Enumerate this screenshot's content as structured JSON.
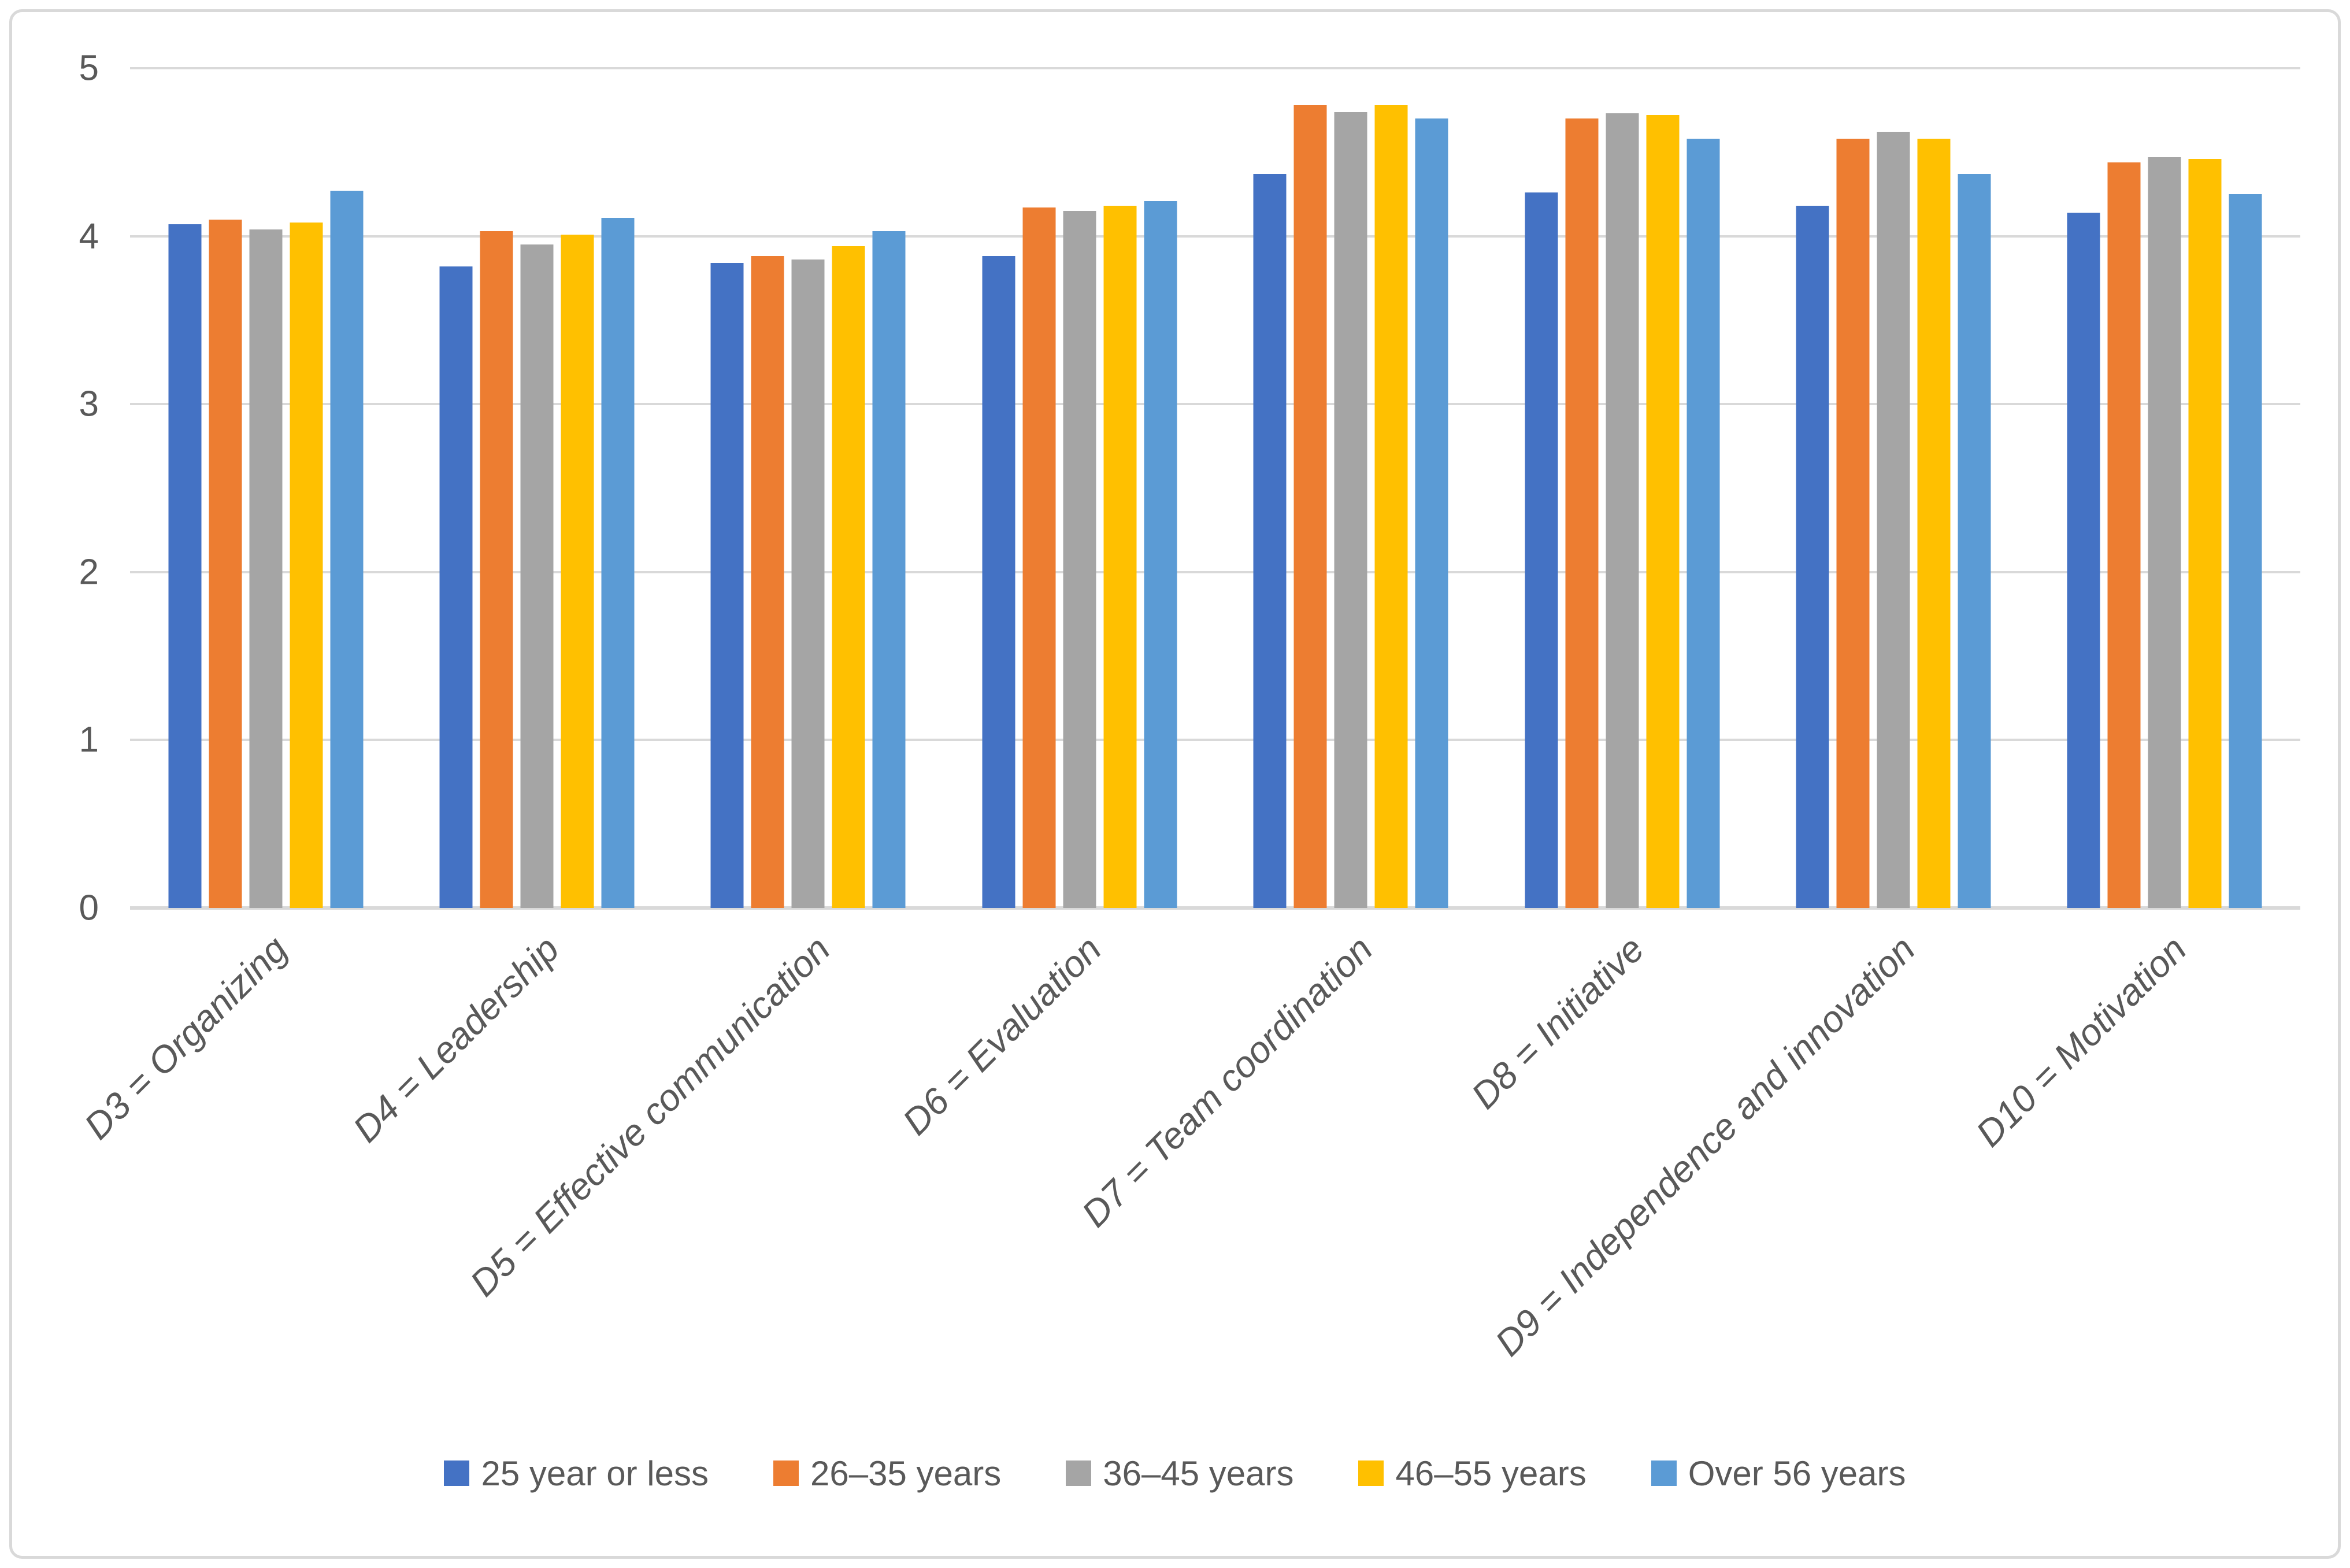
{
  "chart_data": {
    "type": "bar",
    "title": "",
    "categories": [
      "D3 = Organizing",
      "D4 = Leadership",
      "D5 = Effective communication",
      "D6 = Evaluation",
      "D7 = Team coordination",
      "D8 = Initiative",
      "D9 = Independence and innovation",
      "D10 = Motivation"
    ],
    "series": [
      {
        "name": "25 year or less",
        "color": "#4472C4",
        "values": [
          4.07,
          3.82,
          3.84,
          3.88,
          4.37,
          4.26,
          4.18,
          4.14
        ]
      },
      {
        "name": "26–35 years",
        "color": "#ED7D31",
        "values": [
          4.1,
          4.03,
          3.88,
          4.17,
          4.78,
          4.7,
          4.58,
          4.44
        ]
      },
      {
        "name": "36–45 years",
        "color": "#A5A5A5",
        "values": [
          4.04,
          3.95,
          3.86,
          4.15,
          4.74,
          4.73,
          4.62,
          4.47
        ]
      },
      {
        "name": "46–55 years",
        "color": "#FFC000",
        "values": [
          4.08,
          4.01,
          3.94,
          4.18,
          4.78,
          4.72,
          4.58,
          4.46
        ]
      },
      {
        "name": "Over 56 years",
        "color": "#5B9BD5",
        "values": [
          4.27,
          4.11,
          4.03,
          4.21,
          4.7,
          4.58,
          4.37,
          4.25
        ]
      }
    ],
    "y_axis": {
      "min": 0,
      "max": 5,
      "tick_step": 1,
      "tick_labels": [
        "0",
        "1",
        "2",
        "3",
        "4",
        "5"
      ]
    },
    "grid": true,
    "legend_position": "bottom"
  },
  "colors": {
    "axis_text": "#595959",
    "gridline": "#D9D9D9",
    "frame_border": "#D9D9D9",
    "background": "#FFFFFF"
  }
}
